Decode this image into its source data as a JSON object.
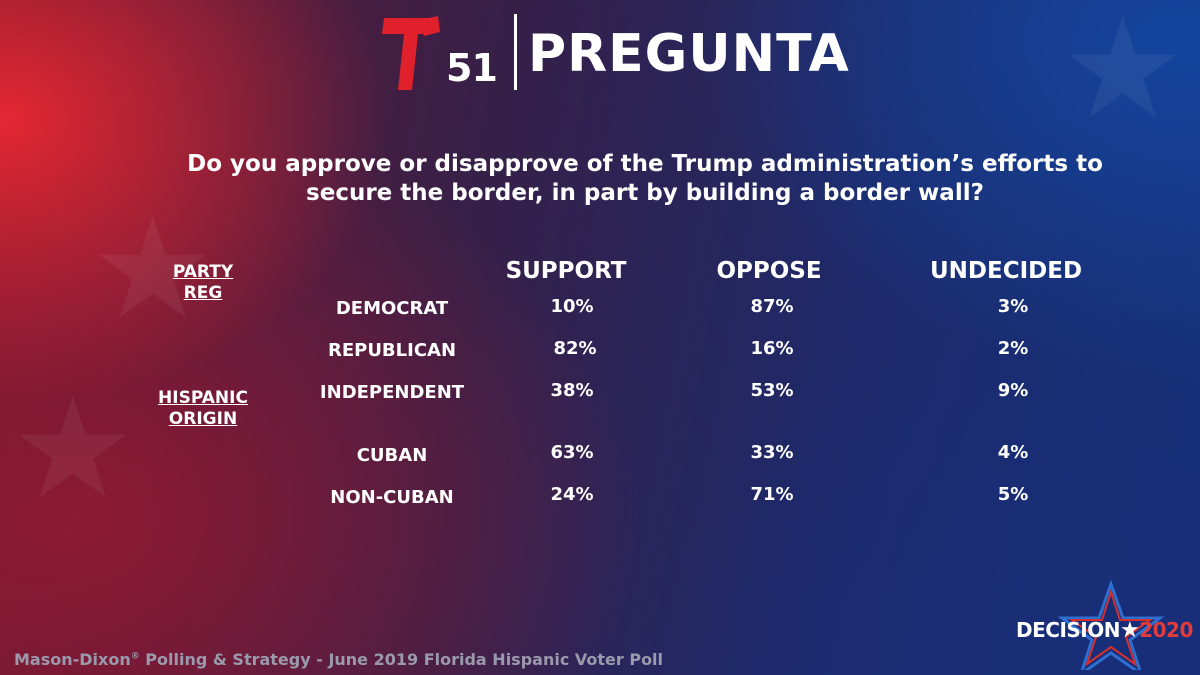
{
  "header": {
    "channel": "51",
    "title": "PREGUNTA"
  },
  "question": "Do you approve or disapprove of the Trump administration’s efforts to secure the border, in part by building a border wall?",
  "chart_data": {
    "type": "table",
    "columns": [
      "SUPPORT",
      "OPPOSE",
      "UNDECIDED"
    ],
    "groups": [
      {
        "label_lines": [
          "PARTY",
          "REG"
        ],
        "rows": [
          {
            "label": "DEMOCRAT",
            "values": [
              "10%",
              "87%",
              "3%"
            ]
          },
          {
            "label": "REPUBLICAN",
            "values": [
              "82%",
              "16%",
              "2%"
            ]
          },
          {
            "label": "INDEPENDENT",
            "values": [
              "38%",
              "53%",
              "9%"
            ]
          }
        ]
      },
      {
        "label_lines": [
          "HISPANIC",
          "ORIGIN"
        ],
        "rows": [
          {
            "label": "CUBAN",
            "values": [
              "63%",
              "33%",
              "4%"
            ]
          },
          {
            "label": "NON-CUBAN",
            "values": [
              "24%",
              "71%",
              "5%"
            ]
          }
        ]
      }
    ]
  },
  "footer": {
    "source": "Mason-Dixon",
    "registered_mark": "®",
    "source_rest": " Polling & Strategy - June 2019 Florida Hispanic Voter Poll"
  },
  "badge": {
    "word": "DECISION",
    "star": "★",
    "year": "2020"
  },
  "colors": {
    "red": "#e0202a",
    "blue": "#1f4fa8",
    "text": "#ffffff",
    "footer_text": "#9a9aac"
  }
}
